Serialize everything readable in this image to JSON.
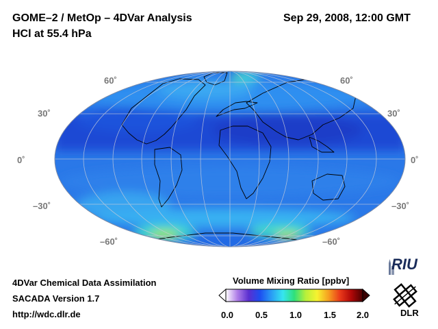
{
  "header": {
    "title": "GOME–2 / MetOp – 4DVar Analysis",
    "subtitle": "HCl at 55.4 hPa",
    "datetime": "Sep 29, 2008, 12:00 GMT"
  },
  "map": {
    "projection": "Hammer-Aitoff (global)",
    "lat_labels": {
      "p60": "60˚",
      "p30": "30˚",
      "zero": "0˚",
      "m30": "–30˚",
      "m60": "–60˚"
    }
  },
  "colorbar": {
    "title": "Volume Mixing Ratio [ppbv]",
    "ticks": [
      "0.0",
      "0.5",
      "1.0",
      "1.5",
      "2.0"
    ],
    "min": 0.0,
    "max": 2.0,
    "colors": [
      "#ffffff",
      "#b07fe8",
      "#5a2fd0",
      "#1d4ff0",
      "#2a9df5",
      "#36e6f0",
      "#2fe07a",
      "#b8f03a",
      "#f7f230",
      "#f6a020",
      "#ea3a1a",
      "#b00808",
      "#4a0000"
    ]
  },
  "footer": {
    "line1": "4DVar Chemical Data Assimilation",
    "line2": "SACADA Version 1.7",
    "line3": "http://wdc.dlr.de"
  },
  "logos": {
    "riu": "RIU",
    "dlr": "DLR"
  }
}
